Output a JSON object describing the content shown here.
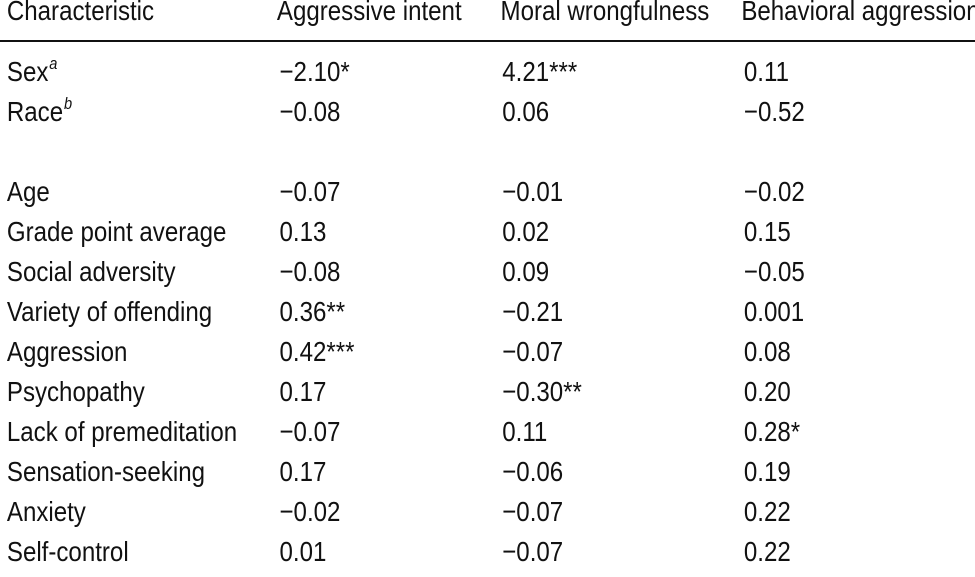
{
  "table": {
    "headers": [
      "Characteristic",
      "Aggressive intent",
      "Moral wrongfulness",
      "Behavioral aggression"
    ],
    "groups": [
      {
        "rows": [
          {
            "label": "Sex",
            "sup": "a",
            "values": [
              "−2.10*",
              "4.21***",
              "0.11"
            ]
          },
          {
            "label": "Race",
            "sup": "b",
            "values": [
              "−0.08",
              "0.06",
              "−0.52"
            ]
          }
        ]
      },
      {
        "rows": [
          {
            "label": "Age",
            "values": [
              "−0.07",
              "−0.01",
              "−0.02"
            ]
          },
          {
            "label": "Grade point average",
            "values": [
              "0.13",
              "0.02",
              "0.15"
            ]
          },
          {
            "label": "Social adversity",
            "values": [
              "−0.08",
              "0.09",
              "−0.05"
            ]
          },
          {
            "label": "Variety of offending",
            "values": [
              "0.36**",
              "−0.21",
              "0.001"
            ]
          },
          {
            "label": "Aggression",
            "values": [
              "0.42***",
              "−0.07",
              "0.08"
            ]
          },
          {
            "label": "Psychopathy",
            "values": [
              "0.17",
              "−0.30**",
              "0.20"
            ]
          },
          {
            "label": "Lack of premeditation",
            "values": [
              "−0.07",
              "0.11",
              "0.28*"
            ]
          },
          {
            "label": "Sensation-seeking",
            "values": [
              "0.17",
              "−0.06",
              "0.19"
            ]
          },
          {
            "label": "Anxiety",
            "values": [
              "−0.02",
              "−0.07",
              "0.22"
            ]
          },
          {
            "label": "Self-control",
            "values": [
              "0.01",
              "−0.07",
              "0.22"
            ]
          }
        ]
      }
    ]
  }
}
